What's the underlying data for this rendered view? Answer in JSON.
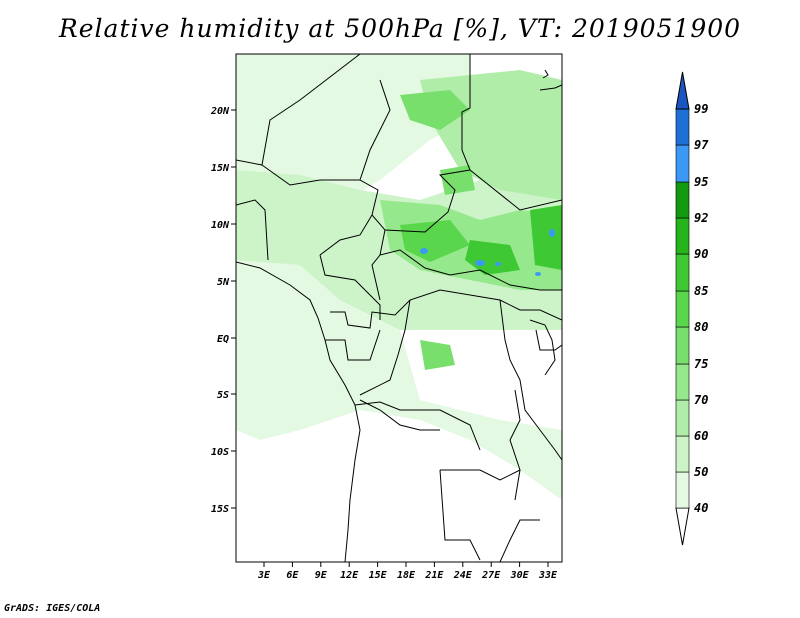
{
  "title": "Relative humidity at 500hPa [%], VT: 2019051900",
  "credit": "GrADS: IGES/COLA",
  "map": {
    "lat_ticks": [
      "20N",
      "15N",
      "10N",
      "5N",
      "EQ",
      "5S",
      "10S",
      "15S"
    ],
    "lon_ticks": [
      "3E",
      "6E",
      "9E",
      "12E",
      "15E",
      "18E",
      "21E",
      "24E",
      "27E",
      "30E",
      "33E"
    ]
  },
  "colorbar": {
    "levels": [
      "40",
      "50",
      "60",
      "70",
      "75",
      "80",
      "85",
      "90",
      "92",
      "95",
      "97",
      "99"
    ],
    "colors": [
      "#ffffff",
      "#e4f9e2",
      "#cdf4c9",
      "#b0eda9",
      "#96e88c",
      "#79df6c",
      "#5ad64c",
      "#3ec833",
      "#26b41c",
      "#129b10",
      "#3b99f5",
      "#1e6fd6",
      "#1b55c2"
    ]
  }
}
